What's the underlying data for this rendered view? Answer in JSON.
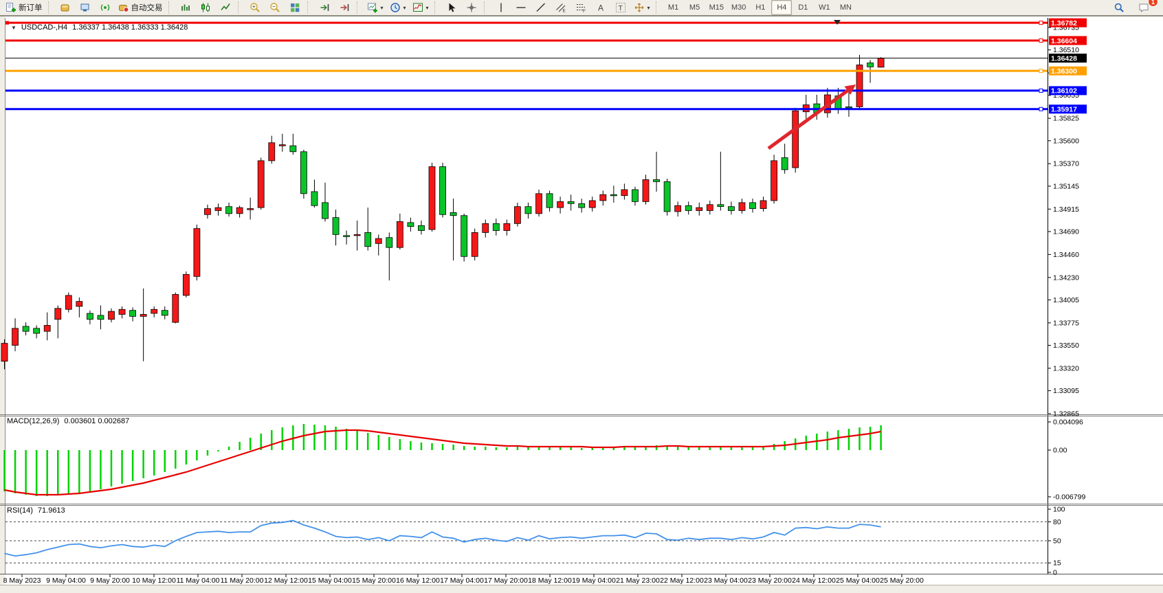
{
  "toolbar": {
    "active_timeframe": "H4",
    "notification_badge": "1",
    "groups": [
      {
        "items": [
          {
            "name": "new-order-button",
            "icon": "new-order",
            "label": "新订单"
          }
        ]
      },
      {
        "items": [
          {
            "name": "charts-button",
            "icon": "cube"
          },
          {
            "name": "profiles-button",
            "icon": "monitor"
          },
          {
            "name": "signals-button",
            "icon": "signal"
          },
          {
            "name": "auto-trading-button",
            "icon": "autotrade",
            "label": "自动交易"
          }
        ]
      },
      {
        "items": [
          {
            "name": "bar-chart-button",
            "icon": "ohlc"
          },
          {
            "name": "candlestick-chart-button",
            "icon": "candles"
          },
          {
            "name": "line-chart-button",
            "icon": "linechart"
          }
        ]
      },
      {
        "items": [
          {
            "name": "zoom-in-button",
            "icon": "zoom-in"
          },
          {
            "name": "zoom-out-button",
            "icon": "zoom-out"
          },
          {
            "name": "tile-windows-button",
            "icon": "tile"
          }
        ]
      },
      {
        "items": [
          {
            "name": "chart-shift-button",
            "icon": "shift"
          },
          {
            "name": "auto-scroll-button",
            "icon": "autoscroll"
          }
        ]
      },
      {
        "items": [
          {
            "name": "new-chart-button",
            "icon": "newchart",
            "dropdown": true
          },
          {
            "name": "periods-button",
            "icon": "clock",
            "dropdown": true
          },
          {
            "name": "templates-button",
            "icon": "indicator",
            "dropdown": true
          }
        ]
      },
      {
        "items": [
          {
            "name": "cursor-button",
            "icon": "cursor"
          },
          {
            "name": "crosshair-button",
            "icon": "crosshair"
          }
        ]
      },
      {
        "items": [
          {
            "name": "vertical-line-button",
            "icon": "vline"
          },
          {
            "name": "horizontal-line-button",
            "icon": "hline"
          },
          {
            "name": "trendline-button",
            "icon": "trend"
          },
          {
            "name": "equidistant-channel-button",
            "icon": "channel"
          },
          {
            "name": "fibonacci-button",
            "icon": "fibo"
          },
          {
            "name": "text-button",
            "icon": "textA"
          },
          {
            "name": "text-label-button",
            "icon": "textT"
          },
          {
            "name": "arrows-button",
            "icon": "arrows",
            "dropdown": true
          }
        ]
      },
      {
        "items": [
          {
            "name": "tf-m1-button",
            "label": "M1",
            "tf": true
          },
          {
            "name": "tf-m5-button",
            "label": "M5",
            "tf": true
          },
          {
            "name": "tf-m15-button",
            "label": "M15",
            "tf": true
          },
          {
            "name": "tf-m30-button",
            "label": "M30",
            "tf": true
          },
          {
            "name": "tf-h1-button",
            "label": "H1",
            "tf": true
          },
          {
            "name": "tf-h4-button",
            "label": "H4",
            "tf": true
          },
          {
            "name": "tf-d1-button",
            "label": "D1",
            "tf": true
          },
          {
            "name": "tf-w1-button",
            "label": "W1",
            "tf": true
          },
          {
            "name": "tf-mn-button",
            "label": "MN",
            "tf": true
          }
        ]
      }
    ],
    "right_items": [
      {
        "name": "search-button",
        "icon": "search"
      },
      {
        "name": "notifications-button",
        "icon": "chat",
        "badge": "1"
      }
    ]
  },
  "chart_data": [
    {
      "type": "candlestick",
      "title": "USDCAD-,H4",
      "ohlc_text": "1.36337 1.36438 1.36333 1.36428",
      "current_price": 1.36428,
      "ylim": [
        1.32865,
        1.3679
      ],
      "yticks": [
        1.36735,
        1.3651,
        1.3628,
        1.36055,
        1.35825,
        1.356,
        1.3537,
        1.35145,
        1.34915,
        1.3469,
        1.3446,
        1.3423,
        1.34005,
        1.33775,
        1.3355,
        1.3332,
        1.33095,
        1.32865
      ],
      "hlines": [
        {
          "price": 1.36782,
          "color": "#f00000"
        },
        {
          "price": 1.36604,
          "color": "#f00000"
        },
        {
          "price": 1.363,
          "color": "#ffa000"
        },
        {
          "price": 1.36102,
          "color": "#0000ff"
        },
        {
          "price": 1.35917,
          "color": "#0000ff"
        }
      ],
      "up_color": "#f51818",
      "down_color": "#0ac42a",
      "annotation_arrow": {
        "from": [
          1118,
          214
        ],
        "to": [
          1245,
          121
        ],
        "color": "#e0262c"
      },
      "x_labels": [
        "8 May 2023",
        "9 May 04:00",
        "9 May 20:00",
        "10 May 12:00",
        "11 May 04:00",
        "11 May 20:00",
        "12 May 12:00",
        "15 May 04:00",
        "15 May 20:00",
        "16 May 12:00",
        "17 May 04:00",
        "17 May 20:00",
        "18 May 12:00",
        "19 May 04:00",
        "21 May 23:00",
        "22 May 12:00",
        "23 May 04:00",
        "23 May 20:00",
        "24 May 12:00",
        "25 May 04:00",
        "25 May 20:00"
      ],
      "ohlc": [
        [
          1.3339,
          1.3361,
          1.3331,
          1.3357
        ],
        [
          1.3355,
          1.3382,
          1.3349,
          1.3372
        ],
        [
          1.3374,
          1.3378,
          1.3365,
          1.3369
        ],
        [
          1.3372,
          1.3375,
          1.3362,
          1.3367
        ],
        [
          1.3369,
          1.3388,
          1.336,
          1.3375
        ],
        [
          1.3381,
          1.3395,
          1.3362,
          1.3392
        ],
        [
          1.3391,
          1.3408,
          1.3388,
          1.3405
        ],
        [
          1.3394,
          1.3403,
          1.3383,
          1.3399
        ],
        [
          1.3387,
          1.339,
          1.3376,
          1.3381
        ],
        [
          1.3385,
          1.3395,
          1.3371,
          1.3381
        ],
        [
          1.3381,
          1.3392,
          1.3378,
          1.3389
        ],
        [
          1.3386,
          1.3394,
          1.3382,
          1.3391
        ],
        [
          1.339,
          1.3393,
          1.3379,
          1.3384
        ],
        [
          1.3384,
          1.3412,
          1.3339,
          1.3386
        ],
        [
          1.3387,
          1.3394,
          1.3383,
          1.3391
        ],
        [
          1.339,
          1.3394,
          1.3381,
          1.3385
        ],
        [
          1.3378,
          1.3408,
          1.3377,
          1.3406
        ],
        [
          1.3405,
          1.3429,
          1.3403,
          1.3426
        ],
        [
          1.3424,
          1.3476,
          1.342,
          1.3472
        ],
        [
          1.3486,
          1.3496,
          1.3482,
          1.3492
        ],
        [
          1.349,
          1.3497,
          1.3485,
          1.3493
        ],
        [
          1.3494,
          1.3498,
          1.3484,
          1.3487
        ],
        [
          1.3487,
          1.3495,
          1.3483,
          1.3493
        ],
        [
          1.3492,
          1.3503,
          1.3481,
          1.3492
        ],
        [
          1.3493,
          1.3543,
          1.3491,
          1.354
        ],
        [
          1.354,
          1.3565,
          1.3537,
          1.3558
        ],
        [
          1.3555,
          1.3567,
          1.3549,
          1.3556
        ],
        [
          1.3555,
          1.3567,
          1.3546,
          1.3549
        ],
        [
          1.3549,
          1.3551,
          1.3502,
          1.3507
        ],
        [
          1.3509,
          1.3521,
          1.3493,
          1.3495
        ],
        [
          1.3498,
          1.3518,
          1.3479,
          1.3482
        ],
        [
          1.3483,
          1.3491,
          1.3455,
          1.3466
        ],
        [
          1.3465,
          1.347,
          1.3456,
          1.3464
        ],
        [
          1.3466,
          1.348,
          1.345,
          1.3466
        ],
        [
          1.3468,
          1.3493,
          1.345,
          1.3454
        ],
        [
          1.3457,
          1.3466,
          1.3445,
          1.3462
        ],
        [
          1.3463,
          1.3468,
          1.342,
          1.3453
        ],
        [
          1.3453,
          1.3487,
          1.3451,
          1.3479
        ],
        [
          1.3478,
          1.3483,
          1.3469,
          1.3474
        ],
        [
          1.3475,
          1.348,
          1.3466,
          1.347
        ],
        [
          1.3471,
          1.3538,
          1.3469,
          1.3534
        ],
        [
          1.3534,
          1.3538,
          1.3483,
          1.3486
        ],
        [
          1.3488,
          1.3502,
          1.344,
          1.3485
        ],
        [
          1.3485,
          1.3487,
          1.3439,
          1.3444
        ],
        [
          1.3444,
          1.3472,
          1.344,
          1.3468
        ],
        [
          1.3468,
          1.3481,
          1.3463,
          1.3477
        ],
        [
          1.3477,
          1.3482,
          1.3465,
          1.347
        ],
        [
          1.347,
          1.3481,
          1.3465,
          1.3477
        ],
        [
          1.3477,
          1.3498,
          1.3474,
          1.3494
        ],
        [
          1.3494,
          1.3498,
          1.3482,
          1.3487
        ],
        [
          1.3487,
          1.3511,
          1.3484,
          1.3507
        ],
        [
          1.3507,
          1.351,
          1.3489,
          1.3493
        ],
        [
          1.3493,
          1.3504,
          1.3487,
          1.3499
        ],
        [
          1.3499,
          1.3506,
          1.349,
          1.3497
        ],
        [
          1.3497,
          1.3502,
          1.3488,
          1.3493
        ],
        [
          1.3493,
          1.3504,
          1.3489,
          1.35
        ],
        [
          1.35,
          1.351,
          1.3495,
          1.3506
        ],
        [
          1.3506,
          1.3515,
          1.3498,
          1.3505
        ],
        [
          1.3505,
          1.3517,
          1.3501,
          1.3511
        ],
        [
          1.3511,
          1.3514,
          1.3495,
          1.3499
        ],
        [
          1.3499,
          1.3526,
          1.3496,
          1.3521
        ],
        [
          1.3521,
          1.3549,
          1.3509,
          1.3519
        ],
        [
          1.3519,
          1.3522,
          1.3485,
          1.3489
        ],
        [
          1.3489,
          1.3499,
          1.3484,
          1.3495
        ],
        [
          1.3495,
          1.3499,
          1.3486,
          1.349
        ],
        [
          1.349,
          1.3498,
          1.3485,
          1.3493
        ],
        [
          1.349,
          1.35,
          1.3486,
          1.3496
        ],
        [
          1.3496,
          1.3549,
          1.349,
          1.3494
        ],
        [
          1.3494,
          1.3499,
          1.3486,
          1.349
        ],
        [
          1.349,
          1.3502,
          1.3487,
          1.3498
        ],
        [
          1.3498,
          1.3502,
          1.3488,
          1.3492
        ],
        [
          1.3492,
          1.3504,
          1.3489,
          1.35
        ],
        [
          1.35,
          1.3546,
          1.3497,
          1.354
        ],
        [
          1.3543,
          1.3557,
          1.3527,
          1.3531
        ],
        [
          1.3533,
          1.3593,
          1.3528,
          1.359
        ],
        [
          1.3589,
          1.3606,
          1.3582,
          1.3596
        ],
        [
          1.3597,
          1.3606,
          1.3581,
          1.3588
        ],
        [
          1.3588,
          1.3613,
          1.3583,
          1.3606
        ],
        [
          1.3605,
          1.3613,
          1.3587,
          1.3592
        ],
        [
          1.3594,
          1.3613,
          1.3584,
          1.3593
        ],
        [
          1.3594,
          1.3646,
          1.3591,
          1.3636
        ],
        [
          1.3638,
          1.3641,
          1.3618,
          1.3634
        ],
        [
          1.36337,
          1.36438,
          1.36333,
          1.36428
        ]
      ]
    },
    {
      "type": "macd",
      "label": "MACD(12,26,9)",
      "values_label": "0.003601 0.002687",
      "ylim": [
        -0.006799,
        0.004096
      ],
      "yticks": [
        {
          "label": "0.004096",
          "value": 0.004096
        },
        {
          "label": "0.00",
          "value": 0
        },
        {
          "label": "-0.006799",
          "value": -0.006799
        }
      ],
      "colors": {
        "histogram": "#00d300",
        "signal": "#e60000"
      },
      "histogram": [
        -0.006,
        -0.0063,
        -0.0065,
        -0.0067,
        -0.0067,
        -0.0066,
        -0.0065,
        -0.0063,
        -0.006,
        -0.0057,
        -0.0053,
        -0.0049,
        -0.0045,
        -0.0041,
        -0.0037,
        -0.0032,
        -0.0027,
        -0.0021,
        -0.0015,
        -0.0008,
        -0.0002,
        0.0005,
        0.0012,
        0.0018,
        0.0024,
        0.0029,
        0.0033,
        0.0036,
        0.0038,
        0.0037,
        0.0036,
        0.0034,
        0.0031,
        0.0028,
        0.0025,
        0.0022,
        0.0019,
        0.0016,
        0.0013,
        0.0011,
        0.001,
        0.0009,
        0.0008,
        0.0006,
        0.0005,
        0.0005,
        0.0004,
        0.0004,
        0.0005,
        0.0004,
        0.0005,
        0.0005,
        0.0004,
        0.0004,
        0.0003,
        0.0004,
        0.0004,
        0.0005,
        0.0005,
        0.0004,
        0.0006,
        0.0007,
        0.0006,
        0.0005,
        0.0004,
        0.0004,
        0.0004,
        0.0005,
        0.0004,
        0.0004,
        0.0005,
        0.0006,
        0.0009,
        0.0013,
        0.0017,
        0.0021,
        0.0024,
        0.0027,
        0.0029,
        0.0031,
        0.0033,
        0.0034,
        0.0036
      ],
      "signal": [
        -0.0058,
        -0.0061,
        -0.0063,
        -0.0065,
        -0.0065,
        -0.0065,
        -0.0064,
        -0.0063,
        -0.0061,
        -0.0059,
        -0.0057,
        -0.0054,
        -0.0051,
        -0.0048,
        -0.0044,
        -0.004,
        -0.0036,
        -0.0032,
        -0.0027,
        -0.0022,
        -0.0017,
        -0.0012,
        -0.0007,
        -0.0002,
        0.0003,
        0.0008,
        0.0013,
        0.0017,
        0.0021,
        0.0024,
        0.0027,
        0.0028,
        0.0029,
        0.0029,
        0.0028,
        0.0026,
        0.0024,
        0.0022,
        0.002,
        0.0018,
        0.0016,
        0.0014,
        0.0012,
        0.001,
        0.0009,
        0.0008,
        0.0007,
        0.0006,
        0.0006,
        0.0005,
        0.0005,
        0.0005,
        0.0005,
        0.0005,
        0.0005,
        0.0004,
        0.0004,
        0.0004,
        0.0005,
        0.0005,
        0.0005,
        0.0005,
        0.0006,
        0.0006,
        0.0005,
        0.0005,
        0.0005,
        0.0005,
        0.0005,
        0.0005,
        0.0005,
        0.0005,
        0.0006,
        0.0007,
        0.0009,
        0.0011,
        0.0013,
        0.0015,
        0.0018,
        0.002,
        0.0022,
        0.0024,
        0.0027
      ]
    },
    {
      "type": "line",
      "label": "RSI(14)",
      "value_label": "71.9613",
      "ylim": [
        0,
        100
      ],
      "yticks": [
        100,
        80,
        50,
        15,
        0
      ],
      "levels_dashed": [
        80,
        50,
        15
      ],
      "color": "#4291ea",
      "values": [
        30,
        26,
        28,
        31,
        36,
        40,
        44,
        45,
        41,
        39,
        42,
        44,
        41,
        40,
        43,
        41,
        50,
        57,
        63,
        64,
        65,
        63,
        64,
        64,
        74,
        78,
        79,
        82,
        75,
        70,
        64,
        57,
        55,
        56,
        52,
        55,
        50,
        58,
        57,
        55,
        64,
        56,
        54,
        48,
        52,
        54,
        51,
        49,
        55,
        51,
        58,
        53,
        55,
        56,
        54,
        56,
        58,
        58,
        59,
        55,
        62,
        61,
        52,
        51,
        54,
        52,
        54,
        54,
        52,
        55,
        53,
        56,
        63,
        59,
        70,
        71,
        69,
        72,
        70,
        70,
        76,
        75,
        72
      ]
    }
  ]
}
